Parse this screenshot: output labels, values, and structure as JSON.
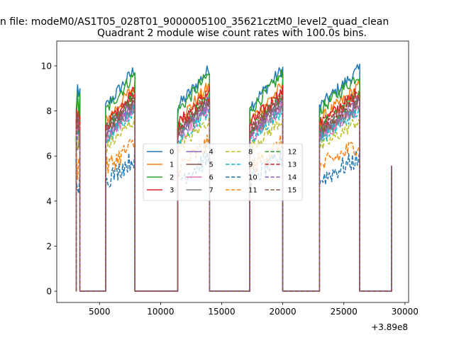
{
  "figure": {
    "suptitle": "n file: modeM0/AS1T05_028T01_9000005100_35621cztM0_level2_quad_clean",
    "offset_text": "+3.89e8"
  },
  "chart_data": {
    "type": "line",
    "title": "Quadrant 2 module wise count rates with 100.0s bins.",
    "xlabel": "",
    "ylabel": "",
    "x_offset": 389000000,
    "xlim": [
      1500,
      30300
    ],
    "ylim": [
      -0.5,
      11.1
    ],
    "x_ticks": [
      5000,
      10000,
      15000,
      20000,
      25000,
      30000
    ],
    "x_tick_labels": [
      "5000",
      "10000",
      "15000",
      "20000",
      "25000",
      "30000"
    ],
    "y_ticks": [
      0,
      2,
      4,
      6,
      8,
      10
    ],
    "y_tick_labels": [
      "0",
      "2",
      "4",
      "6",
      "8",
      "10"
    ],
    "grid": false,
    "legend": {
      "placement": "center",
      "columns": 4
    },
    "orbit_segments": [
      [
        3100,
        3400
      ],
      [
        5500,
        7900
      ],
      [
        11400,
        14000
      ],
      [
        17300,
        20000
      ],
      [
        23000,
        26300
      ]
    ],
    "end_point": {
      "x": 28900,
      "low": 0,
      "high": 5.6
    },
    "series": [
      {
        "name": "0",
        "color": "#1f77b4",
        "style": "solid",
        "level": 9.3
      },
      {
        "name": "1",
        "color": "#ff7f0e",
        "style": "solid",
        "level": 8.6
      },
      {
        "name": "2",
        "color": "#2ca02c",
        "style": "solid",
        "level": 9.1
      },
      {
        "name": "3",
        "color": "#d62728",
        "style": "solid",
        "level": 8.4
      },
      {
        "name": "4",
        "color": "#9467bd",
        "style": "solid",
        "level": 8.0
      },
      {
        "name": "5",
        "color": "#8c564b",
        "style": "solid",
        "level": 7.9
      },
      {
        "name": "6",
        "color": "#e377c2",
        "style": "solid",
        "level": 7.7
      },
      {
        "name": "7",
        "color": "#7f7f7f",
        "style": "solid",
        "level": 7.8
      },
      {
        "name": "8",
        "color": "#bcbd22",
        "style": "dashed",
        "level": 7.2
      },
      {
        "name": "9",
        "color": "#17becf",
        "style": "dashed",
        "level": 7.6
      },
      {
        "name": "10",
        "color": "#1f77b4",
        "style": "dashed",
        "level": 5.6
      },
      {
        "name": "11",
        "color": "#ff7f0e",
        "style": "dashed",
        "level": 6.2
      },
      {
        "name": "12",
        "color": "#2ca02c",
        "style": "dashed",
        "level": 8.2
      },
      {
        "name": "13",
        "color": "#d62728",
        "style": "dashed",
        "level": 8.3
      },
      {
        "name": "14",
        "color": "#9467bd",
        "style": "dashed",
        "level": 7.9
      },
      {
        "name": "15",
        "color": "#8c564b",
        "style": "dashed",
        "level": 8.1
      }
    ]
  }
}
